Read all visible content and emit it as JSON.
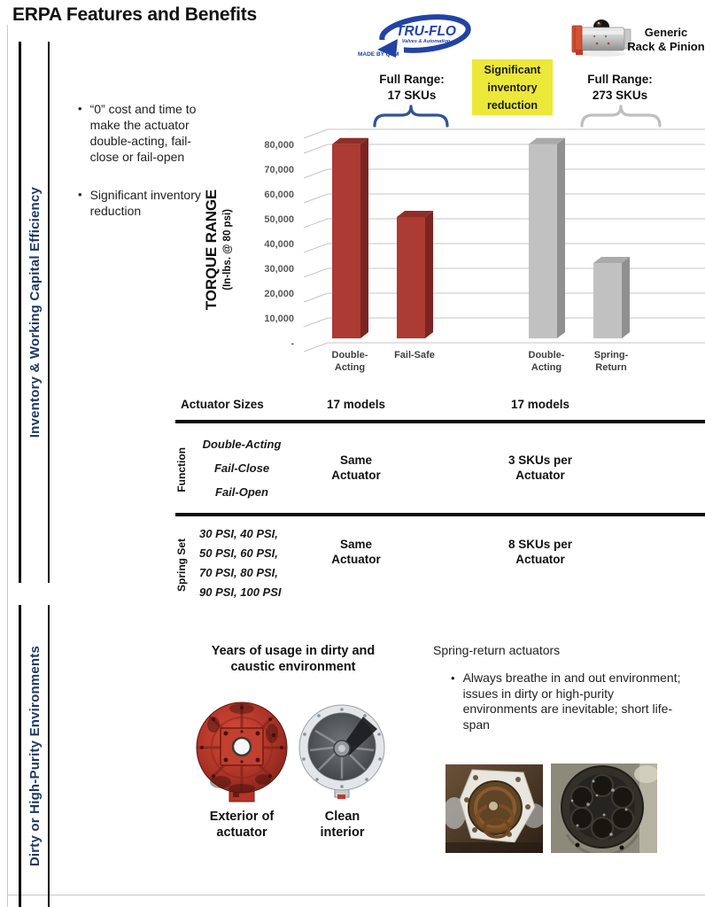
{
  "title": "ERPA Features and Benefits",
  "colors": {
    "sidebar_text": "#1f3864",
    "brand_blue": "#2243a5",
    "brace_blue": "#2f5496",
    "brace_gray": "#bfbfbf",
    "highlight_yellow": "#ece83a",
    "bar_red_front": "#ab3b33",
    "bar_gray_front": "#c1c1c1"
  },
  "sidebar": {
    "sections": [
      {
        "label": "Inventory & Working Capital Efficiency"
      },
      {
        "label": "Dirty or High-Purity Environments"
      }
    ]
  },
  "intro_bullets": [
    "“0” cost and time to make the actuator double-acting, fail-close or fail-open",
    "Significant inventory reduction"
  ],
  "header": {
    "truflo": {
      "name": "TRU-FLO",
      "tagline": "Valves & Automation",
      "made_by": "MADE BY QSM"
    },
    "generic_lines": [
      "Generic",
      "Rack & Pinion"
    ]
  },
  "callouts": {
    "truflo_range_lines": [
      "Full Range:",
      "17 SKUs"
    ],
    "highlight_lines": [
      "Significant",
      "inventory",
      "reduction"
    ],
    "generic_range_lines": [
      "Full Range:",
      "273 SKUs"
    ]
  },
  "chart_data": {
    "type": "bar",
    "style": "3d-column",
    "title": "",
    "xlabel": "",
    "ylabel": "TORQUE RANGE",
    "ylabel_sub": "(In-lbs. @ 80 psi)",
    "ylim": [
      0,
      86000
    ],
    "grid": true,
    "legend": "none",
    "yticks": [
      {
        "label": "80,000",
        "v": 80000
      },
      {
        "label": "70,000",
        "v": 70000
      },
      {
        "label": "60,000",
        "v": 60000
      },
      {
        "label": "50,000",
        "v": 50000
      },
      {
        "label": "40,000",
        "v": 40000
      },
      {
        "label": "30,000",
        "v": 30000
      },
      {
        "label": "20,000",
        "v": 20000
      },
      {
        "label": "10,000",
        "v": 10000
      },
      {
        "label": "-",
        "v": 0
      }
    ],
    "bars": [
      {
        "category": "Double-Acting",
        "group": "TRU-FLO",
        "value": 80000,
        "colors": {
          "front": "#ab3b33",
          "top": "#8e2f29",
          "side": "#7c2420"
        }
      },
      {
        "category": "Fail-Safe",
        "group": "TRU-FLO",
        "value": 50000,
        "colors": {
          "front": "#ab3b33",
          "top": "#8e2f29",
          "side": "#7c2420"
        }
      },
      {
        "category": "Double-Acting",
        "group": "Generic",
        "value": 80000,
        "colors": {
          "front": "#c1c1c1",
          "top": "#aaaaaa",
          "side": "#909090"
        }
      },
      {
        "category": "Spring-Return",
        "group": "Generic",
        "value": 31000,
        "colors": {
          "front": "#c1c1c1",
          "top": "#aaaaaa",
          "side": "#909090"
        }
      }
    ]
  },
  "table": {
    "size_row": {
      "label": "Actuator Sizes",
      "truflo": "17 models",
      "generic": "17 models"
    },
    "function_row": {
      "header": "Function",
      "items": [
        "Double-Acting",
        "Fail-Close",
        "Fail-Open"
      ],
      "truflo_lines": [
        "Same",
        "Actuator"
      ],
      "generic_lines": [
        "3 SKUs per",
        "Actuator"
      ]
    },
    "spring_row": {
      "header": "Spring Set",
      "items": [
        "30 PSI, 40 PSI,",
        "50 PSI, 60 PSI,",
        "70 PSI, 80 PSI,",
        "90 PSI, 100 PSI"
      ],
      "truflo_lines": [
        "Same",
        "Actuator"
      ],
      "generic_lines": [
        "8 SKUs per",
        "Actuator"
      ]
    }
  },
  "bottom": {
    "left_heading_lines": [
      "Years of usage in dirty and",
      "caustic environment"
    ],
    "captions": [
      [
        "Exterior of",
        "actuator"
      ],
      [
        "Clean",
        "interior"
      ]
    ],
    "right_heading": "Spring-return actuators",
    "right_bullets": [
      "Always breathe in and out environment; issues in dirty or high-purity environments are inevitable; short life-span"
    ]
  }
}
